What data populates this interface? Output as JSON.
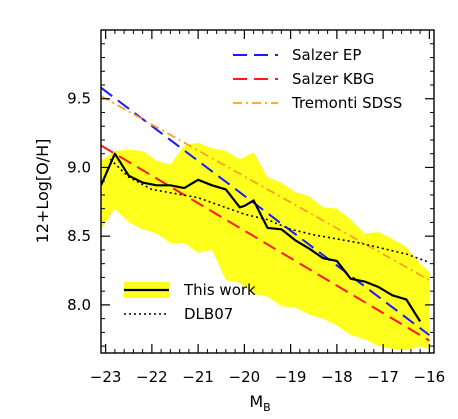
{
  "chart_data": {
    "type": "line",
    "xlabel_main": "M",
    "xlabel_sub": "B",
    "ylabel": "12+Log[O/H]",
    "xlim": [
      -23.1,
      -15.9
    ],
    "ylim": [
      7.65,
      10.0
    ],
    "x_ticks": [
      -23,
      -22,
      -21,
      -20,
      -19,
      -18,
      -17,
      -16
    ],
    "x_tick_labels": [
      "−23",
      "−22",
      "−21",
      "−20",
      "−19",
      "−18",
      "−17",
      "−16"
    ],
    "y_ticks": [
      8.0,
      8.5,
      9.0,
      9.5
    ],
    "y_tick_labels": [
      "8.0",
      "8.5",
      "9.0",
      "9.5"
    ],
    "grid": false,
    "colors": {
      "band": "#ffff1e",
      "this_work": "#000000",
      "dlb07": "#000000",
      "salzer_ep": "#1a1aff",
      "salzer_kbg": "#ff1a1a",
      "tremonti_sdss": "#ffa020"
    },
    "band": {
      "x": [
        -23.1,
        -22.8,
        -22.5,
        -22.2,
        -21.9,
        -21.6,
        -21.3,
        -21.0,
        -20.7,
        -20.4,
        -20.1,
        -19.8,
        -19.5,
        -19.2,
        -18.9,
        -18.6,
        -18.3,
        -18.0,
        -17.7,
        -17.4,
        -17.1,
        -16.8,
        -16.5,
        -16.2,
        -16.0
      ],
      "upper": [
        9.05,
        9.12,
        9.13,
        9.12,
        9.05,
        9.02,
        9.16,
        9.18,
        9.14,
        9.12,
        9.06,
        9.11,
        8.93,
        8.89,
        8.82,
        8.79,
        8.71,
        8.7,
        8.62,
        8.52,
        8.53,
        8.48,
        8.42,
        8.3,
        8.24
      ],
      "lower": [
        8.55,
        8.7,
        8.6,
        8.55,
        8.52,
        8.45,
        8.45,
        8.38,
        8.4,
        8.18,
        8.16,
        8.08,
        8.06,
        7.99,
        7.98,
        7.93,
        7.9,
        7.85,
        7.78,
        7.75,
        7.7,
        7.68,
        7.67,
        7.7,
        7.68
      ]
    },
    "series": [
      {
        "name": "This work",
        "style": "solid",
        "x": [
          -23.1,
          -22.8,
          -22.5,
          -22.2,
          -21.9,
          -21.6,
          -21.3,
          -21.0,
          -20.7,
          -20.4,
          -20.1,
          -20.0,
          -19.8,
          -19.5,
          -19.2,
          -18.9,
          -18.6,
          -18.3,
          -18.0,
          -17.7,
          -17.4,
          -17.1,
          -16.8,
          -16.5,
          -16.2
        ],
        "values": [
          8.87,
          9.1,
          8.94,
          8.89,
          8.87,
          8.87,
          8.85,
          8.91,
          8.87,
          8.84,
          8.71,
          8.72,
          8.76,
          8.56,
          8.55,
          8.47,
          8.41,
          8.34,
          8.32,
          8.19,
          8.17,
          8.13,
          8.07,
          8.04,
          7.88
        ]
      },
      {
        "name": "DLB07",
        "style": "dotted",
        "x": [
          -22.9,
          -22.5,
          -22.0,
          -21.5,
          -21.0,
          -20.5,
          -20.0,
          -19.5,
          -19.0,
          -18.5,
          -18.0,
          -17.5,
          -17.0,
          -16.5,
          -16.0
        ],
        "values": [
          9.06,
          8.93,
          8.84,
          8.81,
          8.78,
          8.72,
          8.66,
          8.62,
          8.55,
          8.51,
          8.48,
          8.45,
          8.41,
          8.37,
          8.31
        ]
      },
      {
        "name": "Salzer EP",
        "style": "dashed",
        "x": [
          -23.1,
          -16.0
        ],
        "values": [
          9.58,
          7.78
        ]
      },
      {
        "name": "Salzer KBG",
        "style": "dashed",
        "x": [
          -23.1,
          -16.0
        ],
        "values": [
          9.16,
          7.74
        ]
      },
      {
        "name": "Tremonti SDSS",
        "style": "dashdot",
        "x": [
          -23.1,
          -16.0
        ],
        "values": [
          9.52,
          8.18
        ]
      }
    ],
    "legend_top_right": [
      "Salzer EP",
      "Salzer KBG",
      "Tremonti SDSS"
    ],
    "legend_bottom_left": [
      "This work",
      "DLB07"
    ]
  }
}
